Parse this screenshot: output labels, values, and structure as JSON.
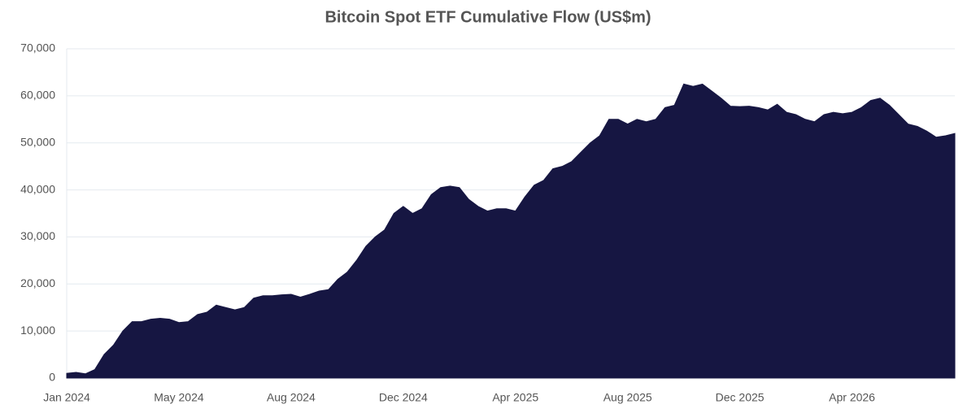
{
  "chart_data": {
    "type": "area",
    "title": "Bitcoin Spot ETF Cumulative Flow (US$m)",
    "categories": [
      "Jan 2024",
      null,
      null,
      null,
      null,
      null,
      null,
      null,
      null,
      null,
      null,
      null,
      "May 2024",
      null,
      null,
      null,
      null,
      null,
      null,
      null,
      null,
      null,
      null,
      null,
      "Aug 2024",
      null,
      null,
      null,
      null,
      null,
      null,
      null,
      null,
      null,
      null,
      null,
      "Dec 2024",
      null,
      null,
      null,
      null,
      null,
      null,
      null,
      null,
      null,
      null,
      null,
      "Apr 2025",
      null,
      null,
      null,
      null,
      null,
      null,
      null,
      null,
      null,
      null,
      null,
      "Aug 2025",
      null,
      null,
      null,
      null,
      null,
      null,
      null,
      null,
      null,
      null,
      null,
      "Dec 2025",
      null,
      null,
      null,
      null,
      null,
      null,
      null,
      null,
      null,
      null,
      null,
      "Apr 2026",
      null,
      null,
      null,
      null,
      null,
      null,
      null,
      null,
      null,
      null,
      null
    ],
    "values": [
      1000,
      1200,
      900,
      1800,
      5000,
      7000,
      10000,
      12000,
      12000,
      12500,
      12700,
      12500,
      11800,
      12000,
      13500,
      14000,
      15500,
      15000,
      14500,
      15000,
      17000,
      17500,
      17500,
      17700,
      17800,
      17200,
      17800,
      18500,
      18800,
      21000,
      22500,
      25000,
      28000,
      30000,
      31500,
      35000,
      36500,
      35000,
      36000,
      39000,
      40500,
      40800,
      40500,
      38000,
      36500,
      35500,
      36000,
      36000,
      35500,
      38500,
      41000,
      42000,
      44500,
      45000,
      46000,
      48000,
      50000,
      51500,
      55000,
      55000,
      54000,
      55000,
      54500,
      55000,
      57500,
      58000,
      62500,
      62000,
      62500,
      61000,
      59500,
      57800,
      57700,
      57800,
      57500,
      57000,
      58200,
      56500,
      56000,
      55000,
      54500,
      56000,
      56500,
      56200,
      56500,
      57500,
      59000,
      59500,
      58000,
      56000,
      54000,
      53500,
      52500,
      51200,
      51500,
      52000
    ],
    "color": "#161642",
    "ylim": [
      0,
      70000
    ],
    "yticks": [
      0,
      {
        "value": 10000,
        "label": "10,000"
      },
      {
        "value": 20000,
        "label": "20,000"
      },
      {
        "value": 30000,
        "label": "30,000"
      },
      {
        "value": 40000,
        "label": "40,000"
      },
      {
        "value": 50000,
        "label": "50,000"
      },
      {
        "value": 60000,
        "label": "60,000"
      },
      {
        "value": 70000,
        "label": "70,000"
      }
    ],
    "grid": true
  }
}
